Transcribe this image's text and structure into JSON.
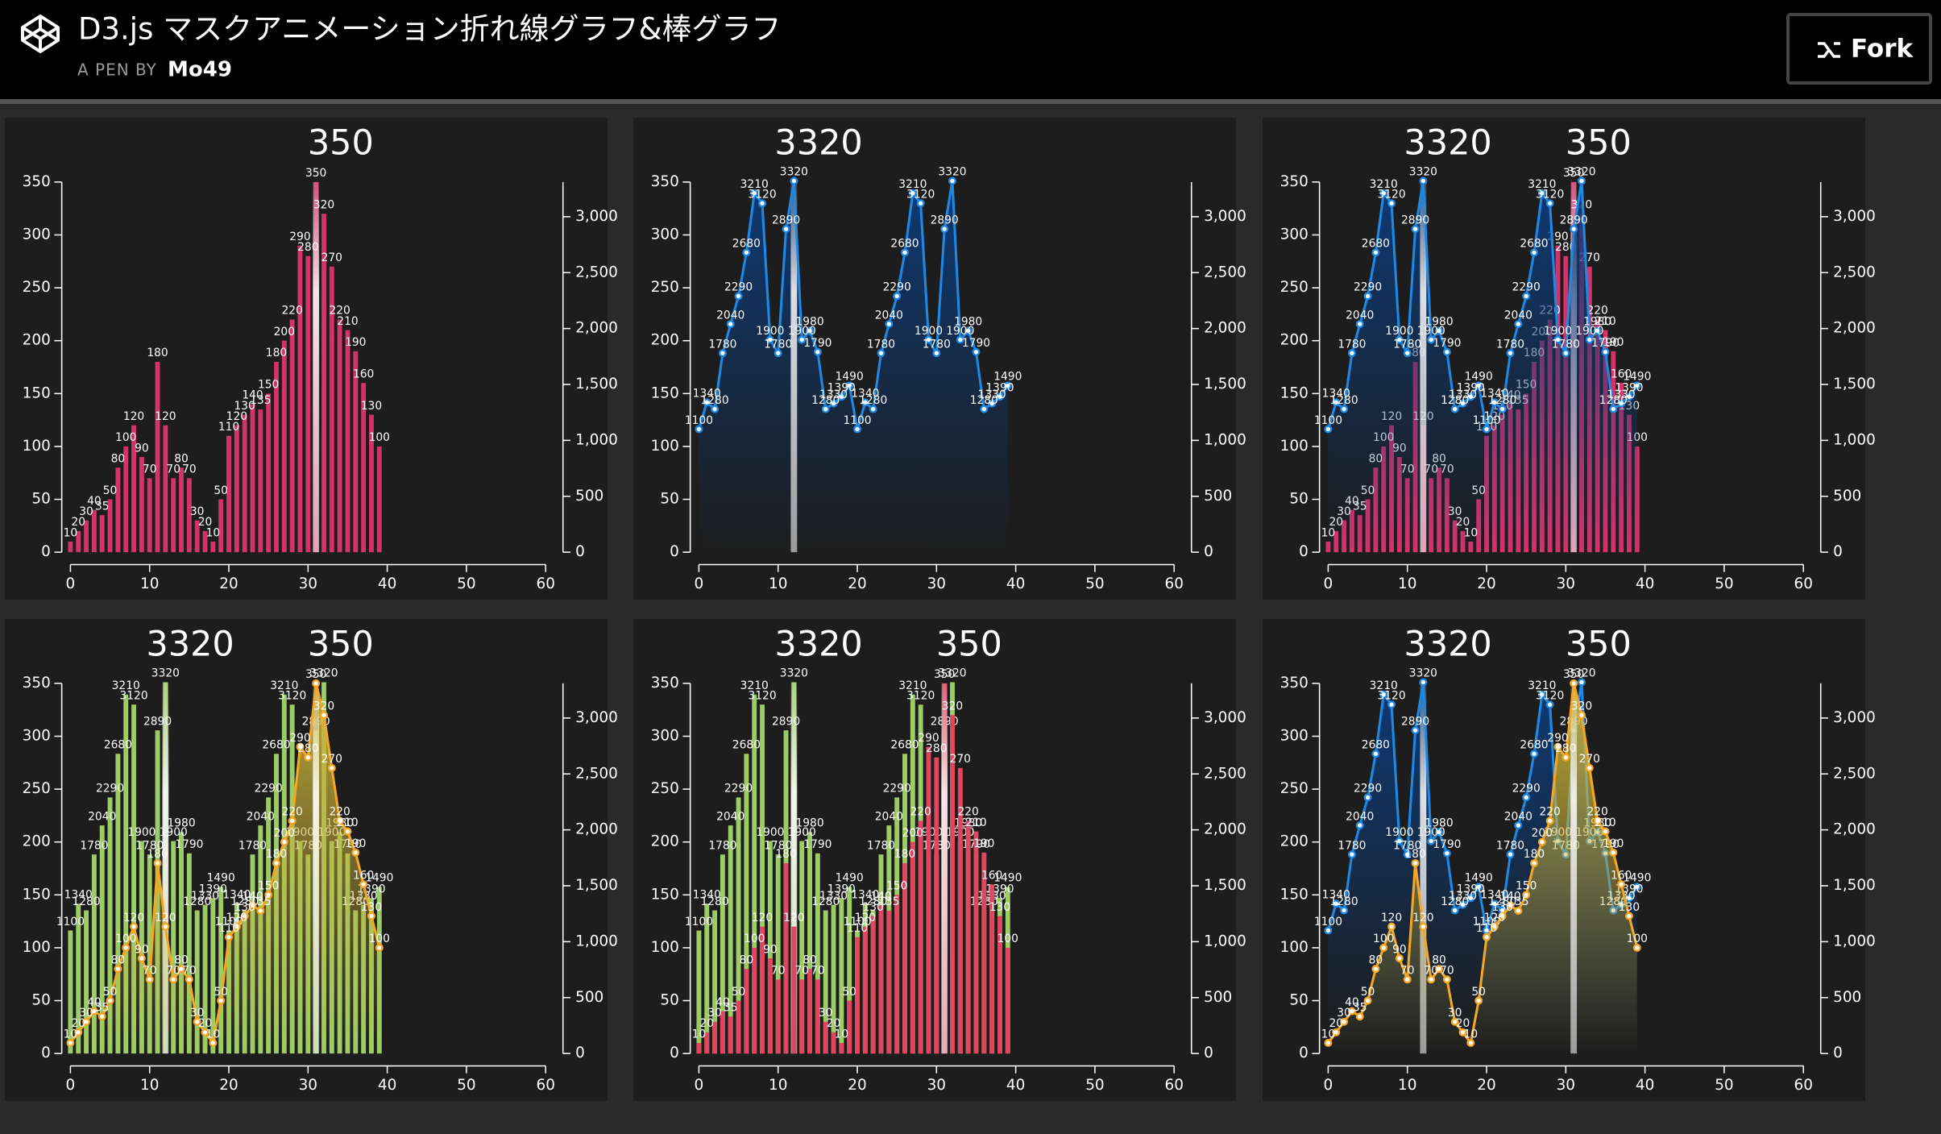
{
  "header": {
    "title": "D3.js マスクアニメーション折れ線グラフ&棒グラフ",
    "byline": "A PEN BY",
    "author": "Mo49",
    "button": "Fork"
  },
  "chart_data": [
    {
      "type": "bar",
      "x": [
        0,
        1,
        2,
        3,
        4,
        5,
        6,
        7,
        8,
        9,
        10,
        11,
        12,
        13,
        14,
        15,
        16,
        17,
        18,
        19,
        20,
        21,
        22,
        23,
        24,
        25,
        26,
        27,
        28,
        29,
        30,
        31,
        32,
        33,
        34,
        35,
        36,
        37,
        38,
        39
      ],
      "xlim": [
        0,
        60
      ],
      "xticks": [
        0,
        10,
        20,
        30,
        40,
        50,
        60
      ],
      "ylim": [
        0,
        350
      ],
      "yticks": [
        0,
        50,
        100,
        150,
        200,
        250,
        300,
        350
      ],
      "y2lim": [
        0,
        3310
      ],
      "y2ticks": [
        0,
        500,
        {
          "value": 1000,
          "label": "1,000"
        },
        {
          "value": 1500,
          "label": "1,500"
        },
        {
          "value": 2000,
          "label": "2,000"
        },
        {
          "value": 2500,
          "label": "2,500"
        },
        {
          "value": 3000,
          "label": "3,000"
        }
      ],
      "series": [
        {
          "type": "bar",
          "color": "#d2336a",
          "peak_label": "350",
          "values": [
            10,
            20,
            30,
            40,
            35,
            50,
            80,
            100,
            120,
            90,
            70,
            180,
            120,
            70,
            80,
            70,
            30,
            20,
            10,
            50,
            110,
            120,
            130,
            140,
            135,
            150,
            180,
            200,
            220,
            290,
            280,
            350,
            320,
            270,
            220,
            210,
            190,
            160,
            130,
            100
          ]
        }
      ]
    },
    {
      "type": "line",
      "x": [
        0,
        1,
        2,
        3,
        4,
        5,
        6,
        7,
        8,
        9,
        10,
        11,
        12,
        13,
        14,
        15,
        16,
        17,
        18,
        19,
        20,
        21,
        22,
        23,
        24,
        25,
        26,
        27,
        28,
        29,
        30,
        31,
        32,
        33,
        34,
        35,
        36,
        37,
        38,
        39
      ],
      "xlim": [
        0,
        60
      ],
      "xticks": [
        0,
        10,
        20,
        30,
        40,
        50,
        60
      ],
      "ylim": [
        0,
        350
      ],
      "yticks": [
        0,
        50,
        100,
        150,
        200,
        250,
        300,
        350
      ],
      "y2lim": [
        0,
        3310
      ],
      "y2ticks": [
        0,
        500,
        {
          "value": 1000,
          "label": "1,000"
        },
        {
          "value": 1500,
          "label": "1,500"
        },
        {
          "value": 2000,
          "label": "2,000"
        },
        {
          "value": 2500,
          "label": "2,500"
        },
        {
          "value": 3000,
          "label": "3,000"
        }
      ],
      "series": [
        {
          "type": "line",
          "axis": "y2",
          "color": "#1e88e5",
          "area_color": "#0d3b78",
          "peak_label": "3320",
          "values": [
            1100,
            1340,
            1280,
            1780,
            2040,
            2290,
            2680,
            3210,
            3120,
            1900,
            1780,
            2890,
            3320,
            1900,
            1980,
            1790,
            1280,
            1330,
            1390,
            1490,
            1100,
            1340,
            1280,
            1780,
            2040,
            2290,
            2680,
            3210,
            3120,
            1900,
            1780,
            2890,
            3320,
            1900,
            1980,
            1790,
            1280,
            1330,
            1390,
            1490
          ]
        }
      ]
    },
    {
      "type": "combo",
      "x": [
        0,
        1,
        2,
        3,
        4,
        5,
        6,
        7,
        8,
        9,
        10,
        11,
        12,
        13,
        14,
        15,
        16,
        17,
        18,
        19,
        20,
        21,
        22,
        23,
        24,
        25,
        26,
        27,
        28,
        29,
        30,
        31,
        32,
        33,
        34,
        35,
        36,
        37,
        38,
        39
      ],
      "xlim": [
        0,
        60
      ],
      "xticks": [
        0,
        10,
        20,
        30,
        40,
        50,
        60
      ],
      "ylim": [
        0,
        350
      ],
      "yticks": [
        0,
        50,
        100,
        150,
        200,
        250,
        300,
        350
      ],
      "y2lim": [
        0,
        3310
      ],
      "y2ticks": [
        0,
        500,
        {
          "value": 1000,
          "label": "1,000"
        },
        {
          "value": 1500,
          "label": "1,500"
        },
        {
          "value": 2000,
          "label": "2,000"
        },
        {
          "value": 2500,
          "label": "2,500"
        },
        {
          "value": 3000,
          "label": "3,000"
        }
      ],
      "series": [
        {
          "type": "bar",
          "color": "#d2336a",
          "peak_label": "350",
          "values": [
            10,
            20,
            30,
            40,
            35,
            50,
            80,
            100,
            120,
            90,
            70,
            180,
            120,
            70,
            80,
            70,
            30,
            20,
            10,
            50,
            110,
            120,
            130,
            140,
            135,
            150,
            180,
            200,
            220,
            290,
            280,
            350,
            320,
            270,
            220,
            210,
            190,
            160,
            130,
            100
          ]
        },
        {
          "type": "line",
          "axis": "y2",
          "color": "#1e88e5",
          "area_color": "#0d3b78",
          "peak_label": "3320",
          "values": [
            1100,
            1340,
            1280,
            1780,
            2040,
            2290,
            2680,
            3210,
            3120,
            1900,
            1780,
            2890,
            3320,
            1900,
            1980,
            1790,
            1280,
            1330,
            1390,
            1490,
            1100,
            1340,
            1280,
            1780,
            2040,
            2290,
            2680,
            3210,
            3120,
            1900,
            1780,
            2890,
            3320,
            1900,
            1980,
            1790,
            1280,
            1330,
            1390,
            1490
          ]
        }
      ]
    },
    {
      "type": "combo",
      "x": [
        0,
        1,
        2,
        3,
        4,
        5,
        6,
        7,
        8,
        9,
        10,
        11,
        12,
        13,
        14,
        15,
        16,
        17,
        18,
        19,
        20,
        21,
        22,
        23,
        24,
        25,
        26,
        27,
        28,
        29,
        30,
        31,
        32,
        33,
        34,
        35,
        36,
        37,
        38,
        39
      ],
      "xlim": [
        0,
        60
      ],
      "xticks": [
        0,
        10,
        20,
        30,
        40,
        50,
        60
      ],
      "ylim": [
        0,
        350
      ],
      "yticks": [
        0,
        50,
        100,
        150,
        200,
        250,
        300,
        350
      ],
      "y2lim": [
        0,
        3310
      ],
      "y2ticks": [
        0,
        500,
        {
          "value": 1000,
          "label": "1,000"
        },
        {
          "value": 1500,
          "label": "1,500"
        },
        {
          "value": 2000,
          "label": "2,000"
        },
        {
          "value": 2500,
          "label": "2,500"
        },
        {
          "value": 3000,
          "label": "3,000"
        }
      ],
      "series": [
        {
          "type": "bar",
          "axis": "y2",
          "color": "#9ccc65",
          "peak_label": "3320",
          "values": [
            1100,
            1340,
            1280,
            1780,
            2040,
            2290,
            2680,
            3210,
            3120,
            1900,
            1780,
            2890,
            3320,
            1900,
            1980,
            1790,
            1280,
            1330,
            1390,
            1490,
            1100,
            1340,
            1280,
            1780,
            2040,
            2290,
            2680,
            3210,
            3120,
            1900,
            1780,
            2890,
            3320,
            1900,
            1980,
            1790,
            1280,
            1330,
            1390,
            1490
          ]
        },
        {
          "type": "line",
          "color": "#f5a623",
          "area_color": "#c9b13a",
          "peak_label": "350",
          "values": [
            10,
            20,
            30,
            40,
            35,
            50,
            80,
            100,
            120,
            90,
            70,
            180,
            120,
            70,
            80,
            70,
            30,
            20,
            10,
            50,
            110,
            120,
            130,
            140,
            135,
            150,
            180,
            200,
            220,
            290,
            280,
            350,
            320,
            270,
            220,
            210,
            190,
            160,
            130,
            100
          ]
        }
      ]
    },
    {
      "type": "combo",
      "x": [
        0,
        1,
        2,
        3,
        4,
        5,
        6,
        7,
        8,
        9,
        10,
        11,
        12,
        13,
        14,
        15,
        16,
        17,
        18,
        19,
        20,
        21,
        22,
        23,
        24,
        25,
        26,
        27,
        28,
        29,
        30,
        31,
        32,
        33,
        34,
        35,
        36,
        37,
        38,
        39
      ],
      "xlim": [
        0,
        60
      ],
      "xticks": [
        0,
        10,
        20,
        30,
        40,
        50,
        60
      ],
      "ylim": [
        0,
        350
      ],
      "yticks": [
        0,
        50,
        100,
        150,
        200,
        250,
        300,
        350
      ],
      "y2lim": [
        0,
        3310
      ],
      "y2ticks": [
        0,
        500,
        {
          "value": 1000,
          "label": "1,000"
        },
        {
          "value": 1500,
          "label": "1,500"
        },
        {
          "value": 2000,
          "label": "2,000"
        },
        {
          "value": 2500,
          "label": "2,500"
        },
        {
          "value": 3000,
          "label": "3,000"
        }
      ],
      "series": [
        {
          "type": "bar",
          "axis": "y2",
          "color": "#9ccc65",
          "peak_label": "3320",
          "values": [
            1100,
            1340,
            1280,
            1780,
            2040,
            2290,
            2680,
            3210,
            3120,
            1900,
            1780,
            2890,
            3320,
            1900,
            1980,
            1790,
            1280,
            1330,
            1390,
            1490,
            1100,
            1340,
            1280,
            1780,
            2040,
            2290,
            2680,
            3210,
            3120,
            1900,
            1780,
            2890,
            3320,
            1900,
            1980,
            1790,
            1280,
            1330,
            1390,
            1490
          ]
        },
        {
          "type": "bar",
          "color": "#e0475f",
          "peak_label": "350",
          "values": [
            10,
            20,
            30,
            40,
            35,
            50,
            80,
            100,
            120,
            90,
            70,
            180,
            120,
            70,
            80,
            70,
            30,
            20,
            10,
            50,
            110,
            120,
            130,
            140,
            135,
            150,
            180,
            200,
            220,
            290,
            280,
            350,
            320,
            270,
            220,
            210,
            190,
            160,
            130,
            100
          ]
        }
      ]
    },
    {
      "type": "line",
      "x": [
        0,
        1,
        2,
        3,
        4,
        5,
        6,
        7,
        8,
        9,
        10,
        11,
        12,
        13,
        14,
        15,
        16,
        17,
        18,
        19,
        20,
        21,
        22,
        23,
        24,
        25,
        26,
        27,
        28,
        29,
        30,
        31,
        32,
        33,
        34,
        35,
        36,
        37,
        38,
        39
      ],
      "xlim": [
        0,
        60
      ],
      "xticks": [
        0,
        10,
        20,
        30,
        40,
        50,
        60
      ],
      "ylim": [
        0,
        350
      ],
      "yticks": [
        0,
        50,
        100,
        150,
        200,
        250,
        300,
        350
      ],
      "y2lim": [
        0,
        3310
      ],
      "y2ticks": [
        0,
        500,
        {
          "value": 1000,
          "label": "1,000"
        },
        {
          "value": 1500,
          "label": "1,500"
        },
        {
          "value": 2000,
          "label": "2,000"
        },
        {
          "value": 2500,
          "label": "2,500"
        },
        {
          "value": 3000,
          "label": "3,000"
        }
      ],
      "series": [
        {
          "type": "line",
          "axis": "y2",
          "color": "#1e88e5",
          "area_color": "#0d3b78",
          "peak_label": "3320",
          "values": [
            1100,
            1340,
            1280,
            1780,
            2040,
            2290,
            2680,
            3210,
            3120,
            1900,
            1780,
            2890,
            3320,
            1900,
            1980,
            1790,
            1280,
            1330,
            1390,
            1490,
            1100,
            1340,
            1280,
            1780,
            2040,
            2290,
            2680,
            3210,
            3120,
            1900,
            1780,
            2890,
            3320,
            1900,
            1980,
            1790,
            1280,
            1330,
            1390,
            1490
          ]
        },
        {
          "type": "line",
          "color": "#f5a623",
          "area_color": "#c9b13a",
          "peak_label": "350",
          "values": [
            10,
            20,
            30,
            40,
            35,
            50,
            80,
            100,
            120,
            90,
            70,
            180,
            120,
            70,
            80,
            70,
            30,
            20,
            10,
            50,
            110,
            120,
            130,
            140,
            135,
            150,
            180,
            200,
            220,
            290,
            280,
            350,
            320,
            270,
            220,
            210,
            190,
            160,
            130,
            100
          ]
        }
      ]
    }
  ]
}
